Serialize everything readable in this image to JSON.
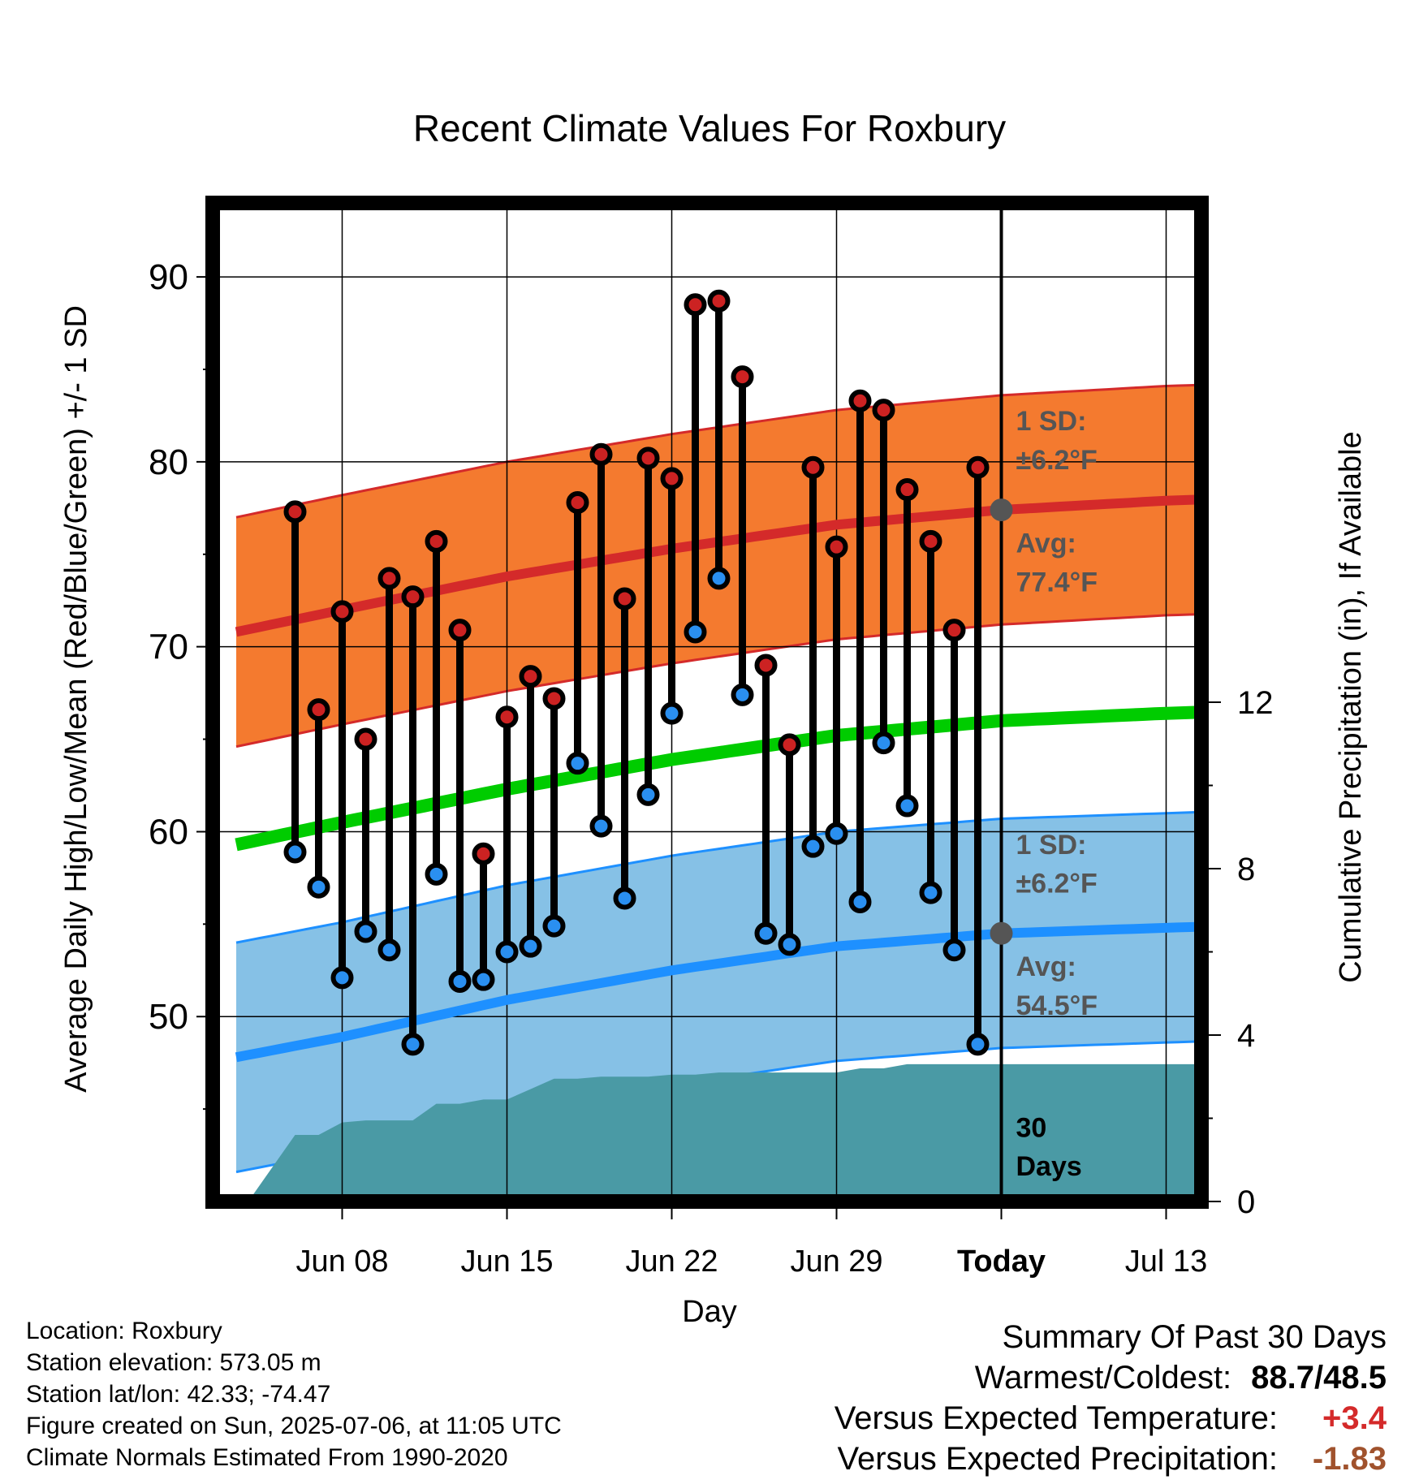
{
  "chart_data": {
    "type": "line",
    "title": "Recent Climate Values For Roxbury",
    "xlabel": "Day",
    "ylabel": "Average Daily High/Low/Mean (Red/Blue/Green) +/- 1 SD",
    "y2label": "Cumulative Precipitation (in), If Available",
    "ylim": [
      40,
      94
    ],
    "y2lim": [
      0,
      24
    ],
    "xlim": [
      -33.5,
      8.5
    ],
    "yticks": [
      "50",
      "60",
      "70",
      "80",
      "90"
    ],
    "yticks_values": [
      50,
      60,
      70,
      80,
      90
    ],
    "y2ticks": [
      "0",
      "4",
      "8",
      "12"
    ],
    "y2ticks_values": [
      0,
      4,
      8,
      12
    ],
    "xticks": [
      "Jun 08",
      "Jun 15",
      "Jun 22",
      "Jun 29",
      "Today",
      "Jul 13"
    ],
    "xticks_values": [
      -28,
      -21,
      -14,
      -7,
      0,
      7
    ],
    "grid": true,
    "colors": {
      "high_band": "#f47a2f",
      "high_mean": "#d42a2a",
      "low_band": "#86c1e6",
      "low_mean": "#1e90ff",
      "mean": "#00cc00",
      "precip": "#4a9aa5",
      "high_dot": "#cc2222",
      "low_dot": "#2a8ff0",
      "today_dot": "#555555"
    },
    "normals": {
      "x": [
        -32.5,
        -28,
        -21,
        -14,
        -7,
        0,
        7,
        9.5
      ],
      "high_mean": [
        70.8,
        72.0,
        73.8,
        75.3,
        76.6,
        77.4,
        77.9,
        78.0
      ],
      "low_mean": [
        47.8,
        48.9,
        50.9,
        52.5,
        53.8,
        54.5,
        54.8,
        54.9
      ],
      "daily_mean": [
        59.3,
        60.5,
        62.3,
        63.9,
        65.2,
        66.0,
        66.4,
        66.5
      ],
      "sd": 6.2
    },
    "observations": {
      "day_offset": [
        -30,
        -29,
        -28,
        -27,
        -26,
        -25,
        -24,
        -23,
        -22,
        -21,
        -20,
        -19,
        -18,
        -17,
        -16,
        -15,
        -14,
        -13,
        -12,
        -11,
        -10,
        -9,
        -8,
        -7,
        -6,
        -5,
        -4,
        -3,
        -2,
        -1
      ],
      "high": [
        77.3,
        66.6,
        71.9,
        65.0,
        73.7,
        72.7,
        75.7,
        70.9,
        58.8,
        66.2,
        68.4,
        67.2,
        77.8,
        80.4,
        72.6,
        80.2,
        79.1,
        88.5,
        88.7,
        84.6,
        69.0,
        64.7,
        79.7,
        75.4,
        83.3,
        82.8,
        78.5,
        75.7,
        70.9,
        79.7
      ],
      "low": [
        58.9,
        57.0,
        52.1,
        54.6,
        53.6,
        48.5,
        57.7,
        51.9,
        52.0,
        53.5,
        53.8,
        54.9,
        63.7,
        60.3,
        56.4,
        62.0,
        66.4,
        70.8,
        73.7,
        67.4,
        54.5,
        53.9,
        59.2,
        59.9,
        56.2,
        64.8,
        61.4,
        56.7,
        53.6,
        48.5
      ]
    },
    "precipitation": {
      "x": [
        -33,
        -31.8,
        -30,
        -29,
        -28,
        -27,
        -26,
        -25,
        -24,
        -23,
        -22,
        -21,
        -20,
        -19,
        -18,
        -17,
        -16,
        -15,
        -14,
        -13,
        -12,
        -11,
        -10,
        -9,
        -8,
        -7,
        -6,
        -5,
        -4,
        -3,
        -2,
        -1,
        0,
        9.5
      ],
      "cumulative": [
        0.05,
        0.15,
        1.6,
        1.6,
        1.9,
        1.95,
        1.95,
        1.95,
        2.35,
        2.35,
        2.45,
        2.45,
        2.7,
        2.95,
        2.95,
        3.0,
        3.0,
        3.0,
        3.05,
        3.05,
        3.1,
        3.1,
        3.1,
        3.1,
        3.1,
        3.1,
        3.2,
        3.2,
        3.3,
        3.3,
        3.3,
        3.3,
        3.3,
        3.3
      ]
    },
    "annotations": {
      "high_sd_label": "1 SD:",
      "high_sd_value": "±6.2°F",
      "high_avg_label": "Avg:",
      "high_avg_value": "77.4°F",
      "low_sd_label": "1 SD:",
      "low_sd_value": "±6.2°F",
      "low_avg_label": "Avg:",
      "low_avg_value": "54.5°F",
      "days_line1": "30",
      "days_line2": "Days"
    },
    "today_high_avg": 77.4,
    "today_low_avg": 54.5
  },
  "footer": {
    "location": "Location: Roxbury",
    "elevation": "Station elevation: 573.05 m",
    "latlon": "Station lat/lon: 42.33; -74.47",
    "created": "Figure created on Sun, 2025-07-06, at 11:05 UTC",
    "normals": "Climate Normals Estimated From 1990-2020"
  },
  "summary": {
    "title": "Summary Of Past 30 Days",
    "warmest_label": "Warmest/Coldest:",
    "warmest_value": "88.7/48.5",
    "temp_label": "Versus Expected Temperature:",
    "temp_value": "+3.4",
    "temp_color": "#d42a2a",
    "precip_label": "Versus Expected Precipitation:",
    "precip_value": "-1.83",
    "precip_color": "#a0522d"
  }
}
